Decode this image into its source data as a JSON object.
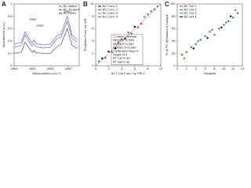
{
  "chart_data": [
    {
      "type": "line",
      "title": "A",
      "x_label": "Wavenumber (cm⁻¹)",
      "y_label": "Absorbance (a.u.)",
      "x": [
        4000,
        3600,
        3400,
        3200,
        3000,
        2900,
        2800,
        2400,
        2000,
        1650,
        1400,
        1060,
        800,
        500
      ],
      "series": [
        {
          "name": "BC Native",
          "color": "#3b5bdb",
          "values": [
            0.35,
            0.38,
            0.55,
            0.45,
            0.37,
            0.42,
            0.36,
            0.34,
            0.35,
            0.48,
            0.52,
            0.8,
            0.5,
            0.42
          ]
        },
        {
          "name": "BC Treated",
          "color": "#9c36b5",
          "values": [
            0.3,
            0.33,
            0.5,
            0.4,
            0.32,
            0.36,
            0.31,
            0.29,
            0.3,
            0.43,
            0.47,
            0.72,
            0.45,
            0.38
          ]
        },
        {
          "name": "BC Dried",
          "color": "#343a40",
          "values": [
            0.2,
            0.22,
            0.38,
            0.3,
            0.22,
            0.25,
            0.21,
            0.2,
            0.2,
            0.3,
            0.35,
            0.6,
            0.33,
            0.28
          ]
        }
      ],
      "annotations": [
        "3340",
        "2900",
        "1060"
      ],
      "xlim": [
        4000,
        400
      ],
      "xticks": [
        4000,
        3000,
        2000,
        1000
      ],
      "ylim": [
        0,
        1
      ],
      "yticks": [
        0,
        0.2,
        0.4,
        0.6,
        0.8,
        1
      ],
      "legend": "upper right"
    },
    {
      "type": "scatter",
      "title": "B",
      "x_label": "ACT-Cal Conc. by HPLC",
      "y_label": "Predicted Conc. by NIR",
      "series": [
        {
          "name": "BC Conc 1",
          "color": "#000000",
          "x": [
            1,
            2,
            3,
            4.5,
            6
          ],
          "values": [
            1.2,
            2.3,
            2.8,
            4.4,
            6.3
          ]
        },
        {
          "name": "BC Conc 2",
          "color": "#e03131",
          "x": [
            1.5,
            3.5,
            5,
            7,
            8.5
          ],
          "values": [
            1.3,
            3.8,
            5.4,
            6.8,
            8.8
          ]
        },
        {
          "name": "BC Conc 3",
          "color": "#2f9e44",
          "x": [
            2.5,
            4,
            6.5,
            7.5,
            9
          ],
          "values": [
            2.2,
            4.3,
            6.2,
            7.9,
            9.1
          ]
        },
        {
          "name": "BC Conc 4",
          "color": "#1c7ed6",
          "x": [
            0.5,
            5.5,
            8,
            9.5
          ],
          "values": [
            0.7,
            5.2,
            8.3,
            9.6
          ]
        }
      ],
      "annotations": [
        "7 Latent Variable",
        "RMSEC=0.046",
        "RMSEP=0.052",
        "RMSECV=0.069",
        "Calibration Bias=0",
        "Slope=0.9",
        "R² Cal=0.99",
        "R² Val=0.98"
      ],
      "xlim": [
        0,
        10
      ],
      "xticks": [
        0,
        2,
        4,
        6,
        8,
        10
      ],
      "ylim": [
        0,
        10
      ],
      "yticks": [
        0,
        2,
        4,
        6,
        8,
        10
      ],
      "legend": "upper left"
    },
    {
      "type": "scatter",
      "title": "C",
      "x_label": "Samples",
      "y_label": "% of PC Measured in Sample",
      "series": [
        {
          "name": "BC Set 1",
          "color": "#e03131",
          "x": [
            1,
            3,
            5,
            7,
            9,
            11,
            13
          ],
          "values": [
            18,
            30,
            42,
            55,
            60,
            72,
            85
          ]
        },
        {
          "name": "BC Set 2",
          "color": "#1c7ed6",
          "x": [
            2,
            4,
            6,
            8,
            10,
            12
          ],
          "values": [
            22,
            35,
            48,
            50,
            66,
            78
          ]
        },
        {
          "name": "BC Set 3",
          "color": "#2f9e44",
          "x": [
            1.5,
            4.5,
            7.5,
            10.5,
            12.5
          ],
          "values": [
            12,
            40,
            58,
            70,
            90
          ]
        },
        {
          "name": "BC Set 4",
          "color": "#000000",
          "x": [
            3.5,
            6.5,
            9.5,
            11.5
          ],
          "values": [
            28,
            45,
            62,
            80
          ]
        }
      ],
      "xlim": [
        0,
        14
      ],
      "xticks": [
        0,
        2,
        4,
        6,
        8,
        10,
        12,
        14
      ],
      "ylim": [
        0,
        100
      ],
      "yticks": [
        0,
        20,
        40,
        60,
        80,
        100
      ],
      "legend": "upper left"
    }
  ]
}
